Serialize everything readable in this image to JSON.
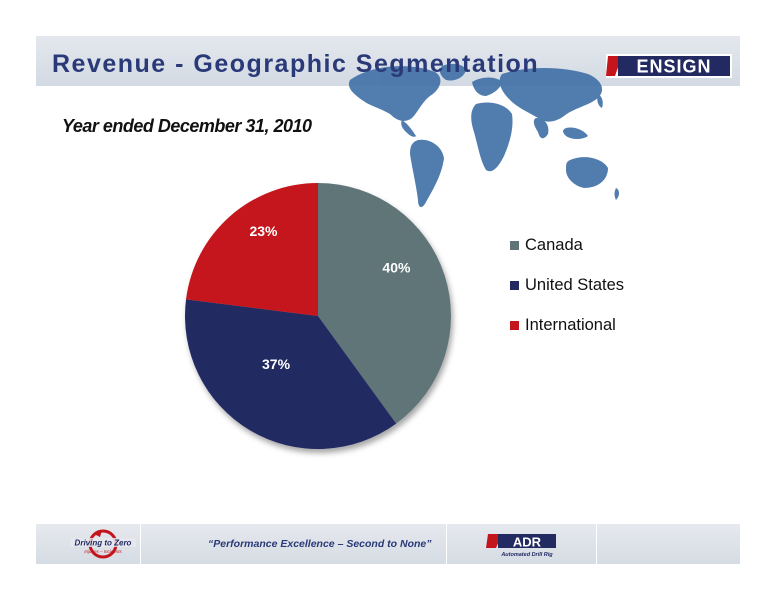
{
  "header": {
    "title": "Revenue - Geographic Segmentation",
    "logo_text": "ENSIGN"
  },
  "subtitle": "Year ended December 31, 2010",
  "chart_data": {
    "type": "pie",
    "categories": [
      "Canada",
      "United States",
      "International"
    ],
    "values": [
      40,
      37,
      23
    ],
    "labels": [
      "40%",
      "37%",
      "23%"
    ],
    "colors": [
      "#607478",
      "#232a62",
      "#c4151c"
    ],
    "legend_placement": "right"
  },
  "footer": {
    "tagline": "“Performance Excellence – Second to None”",
    "left_logo_line1": "Driving to Zero",
    "left_logo_line2": "Injuries – Incidents",
    "adr_logo_text": "ADR",
    "adr_logo_subtext": "Automated Drill Rig"
  }
}
